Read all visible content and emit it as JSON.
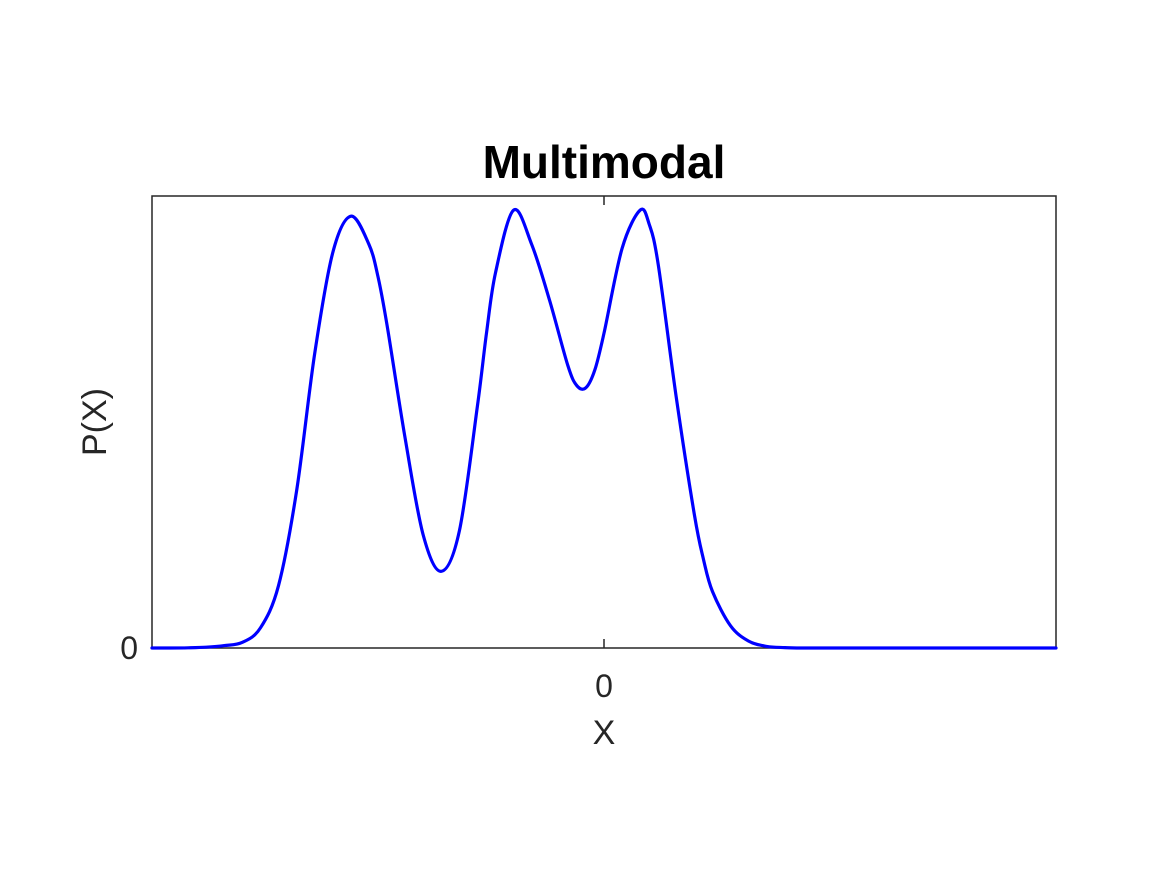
{
  "chart_data": {
    "type": "line",
    "title": "Multimodal",
    "xlabel": "X",
    "ylabel": "P(X)",
    "xlim": [
      -5,
      5
    ],
    "ylim": [
      0,
      1.12
    ],
    "xticks": [
      {
        "value": 0,
        "label": "0"
      }
    ],
    "yticks": [
      {
        "value": 0,
        "label": "0"
      }
    ],
    "grid": false,
    "legend": "none",
    "box": true,
    "series": [
      {
        "color": "#0000ff",
        "x": [
          -5,
          -4.8,
          -4.6,
          -4.4,
          -4.2,
          -4.0,
          -3.8,
          -3.6,
          -3.4,
          -3.2,
          -3.0,
          -2.8,
          -2.6,
          -2.5,
          -2.4,
          -2.2,
          -2.0,
          -1.8,
          -1.6,
          -1.4,
          -1.3,
          -1.2,
          -1.0,
          -0.8,
          -0.6,
          -0.4,
          -0.3,
          -0.2,
          -0.1,
          0,
          0.2,
          0.4,
          0.5,
          0.6,
          0.8,
          1.0,
          1.1,
          1.2,
          1.4,
          1.6,
          1.8,
          2.0,
          2.2,
          2.4,
          2.6,
          2.8,
          3.0,
          3.2,
          3.4,
          3.6,
          3.8,
          4.0,
          4.5,
          5.0
        ],
        "y": [
          0.0,
          0.0,
          0.0005,
          0.002,
          0.006,
          0.014,
          0.05,
          0.155,
          0.39,
          0.73,
          0.98,
          1.07,
          1.0,
          0.92,
          0.8,
          0.52,
          0.28,
          0.19,
          0.29,
          0.6,
          0.78,
          0.93,
          1.085,
          1.0,
          0.86,
          0.7,
          0.65,
          0.645,
          0.69,
          0.78,
          0.99,
          1.085,
          1.05,
          0.95,
          0.62,
          0.33,
          0.22,
          0.14,
          0.055,
          0.017,
          0.004,
          0.001,
          0.0,
          0.0,
          0.0,
          0.0,
          0.0,
          0.0,
          0.0,
          0.0,
          0.0,
          0.0,
          0.0,
          0.0
        ]
      }
    ]
  }
}
